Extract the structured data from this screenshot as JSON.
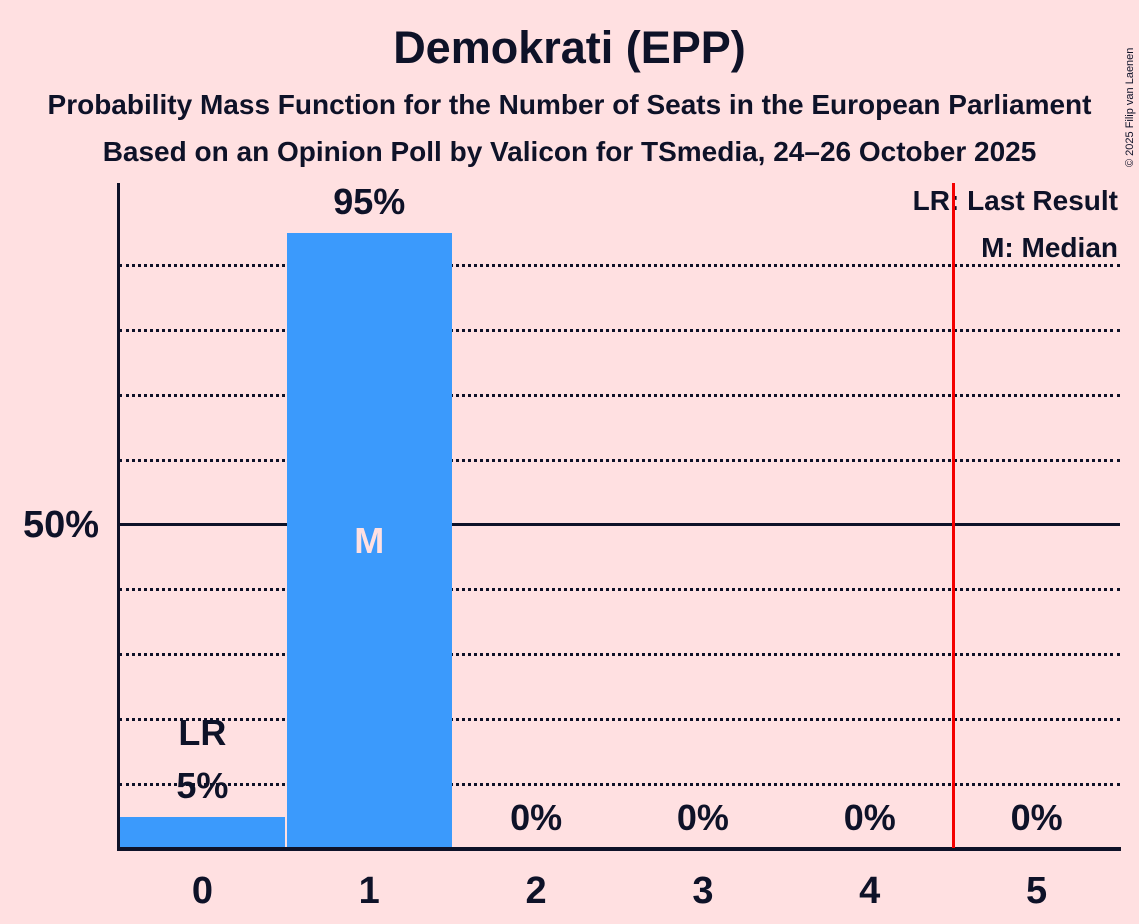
{
  "copyright": "© 2025 Filip van Laenen",
  "colors": {
    "background": "#ffe0e1",
    "text": "#0e1228",
    "bar": "#3b9afc",
    "red_line": "#f40000",
    "median_text": "#ffe0e1"
  },
  "chart_data": {
    "type": "bar",
    "title": "Demokrati (EPP)",
    "subtitle": [
      "Probability Mass Function for the Number of Seats in the European Parliament",
      "Based on an Opinion Poll by Valicon for TSmedia, 24–26 October 2025"
    ],
    "categories": [
      "0",
      "1",
      "2",
      "3",
      "4",
      "5"
    ],
    "values": [
      5,
      95,
      0,
      0,
      0,
      0
    ],
    "bar_labels": [
      "5%",
      "95%",
      "0%",
      "0%",
      "0%",
      "0%"
    ],
    "xlabel": "",
    "ylabel": "",
    "ylim": [
      0,
      100
    ],
    "ytick_labels": {
      "50": "50%"
    },
    "gridlines_pct": [
      10,
      20,
      30,
      40,
      50,
      60,
      70,
      80,
      90
    ],
    "solid_gridline_pct": 50,
    "grid": true,
    "legend": [
      "LR: Last Result",
      "M: Median"
    ],
    "legend_position": "top-right",
    "annotations": {
      "last_result_seat": 0,
      "last_result_label": "LR",
      "median_seat": 1,
      "median_label": "M",
      "red_line_at_seat": 4.5
    }
  }
}
